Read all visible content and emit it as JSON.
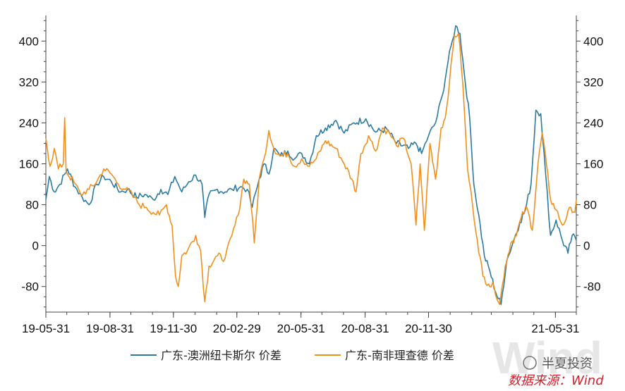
{
  "chart_data": {
    "type": "line",
    "title": "",
    "xlabel": "",
    "ylabel": "",
    "ylim": [
      -130,
      450
    ],
    "yticks": [
      -80,
      0,
      80,
      160,
      240,
      320,
      400
    ],
    "xticks": [
      "19-05-31",
      "19-08-31",
      "19-11-30",
      "20-02-29",
      "20-05-31",
      "20-08-31",
      "20-11-30",
      "21-05-31"
    ],
    "x_start": "2019-05-31",
    "x_end": "2021-06-30",
    "legend_position": "bottom",
    "grid": false,
    "series": [
      {
        "name": "广东-澳洲纽卡斯尔 价差",
        "color": "#2b7aa0",
        "points": [
          [
            "2019-05-31",
            90
          ],
          [
            "2019-06-05",
            135
          ],
          [
            "2019-06-12",
            105
          ],
          [
            "2019-06-20",
            120
          ],
          [
            "2019-07-01",
            150
          ],
          [
            "2019-07-12",
            115
          ],
          [
            "2019-07-22",
            95
          ],
          [
            "2019-08-01",
            80
          ],
          [
            "2019-08-12",
            120
          ],
          [
            "2019-08-22",
            135
          ],
          [
            "2019-09-02",
            125
          ],
          [
            "2019-09-15",
            105
          ],
          [
            "2019-09-25",
            110
          ],
          [
            "2019-10-08",
            95
          ],
          [
            "2019-10-20",
            100
          ],
          [
            "2019-11-01",
            90
          ],
          [
            "2019-11-12",
            110
          ],
          [
            "2019-11-22",
            100
          ],
          [
            "2019-12-02",
            135
          ],
          [
            "2019-12-12",
            105
          ],
          [
            "2019-12-22",
            125
          ],
          [
            "2020-01-01",
            138
          ],
          [
            "2020-01-10",
            120
          ],
          [
            "2020-01-14",
            55
          ],
          [
            "2020-01-20",
            100
          ],
          [
            "2020-02-01",
            110
          ],
          [
            "2020-02-12",
            105
          ],
          [
            "2020-02-22",
            110
          ],
          [
            "2020-03-05",
            115
          ],
          [
            "2020-03-15",
            110
          ],
          [
            "2020-03-22",
            75
          ],
          [
            "2020-04-01",
            130
          ],
          [
            "2020-04-08",
            160
          ],
          [
            "2020-04-15",
            140
          ],
          [
            "2020-04-22",
            190
          ],
          [
            "2020-05-01",
            175
          ],
          [
            "2020-05-12",
            185
          ],
          [
            "2020-05-22",
            170
          ],
          [
            "2020-06-01",
            180
          ],
          [
            "2020-06-12",
            160
          ],
          [
            "2020-06-22",
            215
          ],
          [
            "2020-07-05",
            230
          ],
          [
            "2020-07-20",
            245
          ],
          [
            "2020-08-01",
            220
          ],
          [
            "2020-08-15",
            240
          ],
          [
            "2020-09-01",
            248
          ],
          [
            "2020-09-15",
            222
          ],
          [
            "2020-10-01",
            228
          ],
          [
            "2020-10-15",
            200
          ],
          [
            "2020-11-01",
            190
          ],
          [
            "2020-11-12",
            200
          ],
          [
            "2020-11-20",
            180
          ],
          [
            "2020-11-30",
            215
          ],
          [
            "2020-12-10",
            240
          ],
          [
            "2020-12-20",
            295
          ],
          [
            "2020-12-28",
            360
          ],
          [
            "2021-01-03",
            400
          ],
          [
            "2021-01-08",
            430
          ],
          [
            "2021-01-14",
            415
          ],
          [
            "2021-01-20",
            340
          ],
          [
            "2021-01-28",
            250
          ],
          [
            "2021-02-03",
            120
          ],
          [
            "2021-02-10",
            60
          ],
          [
            "2021-02-18",
            -20
          ],
          [
            "2021-02-26",
            -50
          ],
          [
            "2021-03-06",
            -90
          ],
          [
            "2021-03-14",
            -115
          ],
          [
            "2021-03-22",
            -30
          ],
          [
            "2021-04-01",
            10
          ],
          [
            "2021-04-10",
            45
          ],
          [
            "2021-04-18",
            70
          ],
          [
            "2021-04-26",
            120
          ],
          [
            "2021-05-03",
            265
          ],
          [
            "2021-05-10",
            258
          ],
          [
            "2021-05-17",
            140
          ],
          [
            "2021-05-24",
            20
          ],
          [
            "2021-06-01",
            50
          ],
          [
            "2021-06-10",
            10
          ],
          [
            "2021-06-18",
            -15
          ],
          [
            "2021-06-24",
            20
          ],
          [
            "2021-06-30",
            10
          ]
        ]
      },
      {
        "name": "广东-南非理查德 价差",
        "color": "#f0901e",
        "points": [
          [
            "2019-05-31",
            210
          ],
          [
            "2019-06-06",
            155
          ],
          [
            "2019-06-12",
            190
          ],
          [
            "2019-06-18",
            150
          ],
          [
            "2019-06-25",
            160
          ],
          [
            "2019-06-27",
            250
          ],
          [
            "2019-06-29",
            145
          ],
          [
            "2019-07-10",
            125
          ],
          [
            "2019-07-20",
            100
          ],
          [
            "2019-08-01",
            110
          ],
          [
            "2019-08-12",
            125
          ],
          [
            "2019-08-22",
            150
          ],
          [
            "2019-09-02",
            140
          ],
          [
            "2019-09-12",
            120
          ],
          [
            "2019-09-22",
            110
          ],
          [
            "2019-10-02",
            100
          ],
          [
            "2019-10-12",
            80
          ],
          [
            "2019-10-22",
            75
          ],
          [
            "2019-11-01",
            65
          ],
          [
            "2019-11-10",
            60
          ],
          [
            "2019-11-20",
            80
          ],
          [
            "2019-11-28",
            40
          ],
          [
            "2019-12-03",
            -60
          ],
          [
            "2019-12-07",
            -80
          ],
          [
            "2019-12-12",
            -20
          ],
          [
            "2019-12-20",
            -10
          ],
          [
            "2020-01-01",
            20
          ],
          [
            "2020-01-08",
            -10
          ],
          [
            "2020-01-14",
            -110
          ],
          [
            "2020-01-20",
            -40
          ],
          [
            "2020-02-01",
            -20
          ],
          [
            "2020-02-12",
            -25
          ],
          [
            "2020-02-22",
            20
          ],
          [
            "2020-03-02",
            60
          ],
          [
            "2020-03-10",
            130
          ],
          [
            "2020-03-18",
            120
          ],
          [
            "2020-03-25",
            5
          ],
          [
            "2020-04-01",
            130
          ],
          [
            "2020-04-08",
            170
          ],
          [
            "2020-04-15",
            225
          ],
          [
            "2020-04-22",
            190
          ],
          [
            "2020-05-01",
            175
          ],
          [
            "2020-05-12",
            180
          ],
          [
            "2020-05-22",
            155
          ],
          [
            "2020-06-01",
            170
          ],
          [
            "2020-06-12",
            155
          ],
          [
            "2020-06-22",
            170
          ],
          [
            "2020-07-05",
            205
          ],
          [
            "2020-07-20",
            190
          ],
          [
            "2020-08-01",
            160
          ],
          [
            "2020-08-12",
            130
          ],
          [
            "2020-08-18",
            105
          ],
          [
            "2020-08-25",
            180
          ],
          [
            "2020-09-05",
            215
          ],
          [
            "2020-09-15",
            185
          ],
          [
            "2020-09-25",
            230
          ],
          [
            "2020-10-05",
            220
          ],
          [
            "2020-10-15",
            195
          ],
          [
            "2020-10-25",
            210
          ],
          [
            "2020-11-05",
            160
          ],
          [
            "2020-11-12",
            40
          ],
          [
            "2020-11-18",
            160
          ],
          [
            "2020-11-24",
            30
          ],
          [
            "2020-12-02",
            200
          ],
          [
            "2020-12-10",
            130
          ],
          [
            "2020-12-18",
            230
          ],
          [
            "2020-12-24",
            250
          ],
          [
            "2020-12-30",
            320
          ],
          [
            "2021-01-06",
            410
          ],
          [
            "2021-01-12",
            415
          ],
          [
            "2021-01-18",
            320
          ],
          [
            "2021-01-25",
            150
          ],
          [
            "2021-02-01",
            80
          ],
          [
            "2021-02-08",
            10
          ],
          [
            "2021-02-16",
            -60
          ],
          [
            "2021-02-24",
            -75
          ],
          [
            "2021-03-04",
            -80
          ],
          [
            "2021-03-12",
            -115
          ],
          [
            "2021-03-20",
            -40
          ],
          [
            "2021-03-28",
            5
          ],
          [
            "2021-04-05",
            20
          ],
          [
            "2021-04-12",
            55
          ],
          [
            "2021-04-20",
            75
          ],
          [
            "2021-04-28",
            30
          ],
          [
            "2021-05-06",
            160
          ],
          [
            "2021-05-12",
            220
          ],
          [
            "2021-05-18",
            160
          ],
          [
            "2021-05-24",
            90
          ],
          [
            "2021-06-01",
            70
          ],
          [
            "2021-06-10",
            40
          ],
          [
            "2021-06-16",
            55
          ],
          [
            "2021-06-22",
            75
          ],
          [
            "2021-06-28",
            65
          ],
          [
            "2021-06-30",
            90
          ]
        ]
      }
    ]
  },
  "watermark": {
    "brand_text": "半夏投资",
    "source_text": "数据来源：Wind",
    "bg_mark": "Wind"
  }
}
